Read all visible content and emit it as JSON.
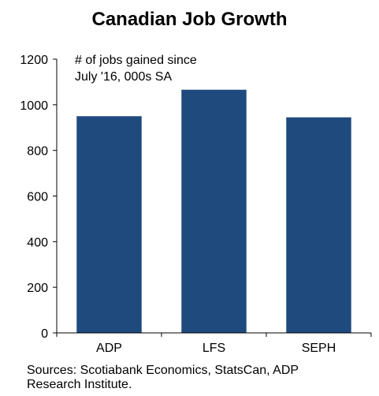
{
  "chart_data": {
    "type": "bar",
    "title": "Canadian Job Growth",
    "annotation_lines": [
      "# of jobs gained since",
      "July '16, 000s SA"
    ],
    "categories": [
      "ADP",
      "LFS",
      "SEPH"
    ],
    "values": [
      950,
      1066,
      945
    ],
    "xlabel": "",
    "ylabel": "",
    "ylim": [
      0,
      1200
    ],
    "yticks": [
      0,
      200,
      400,
      600,
      800,
      1000,
      1200
    ],
    "grid": false,
    "legend": "none",
    "bar_color": "#1f4a7e"
  },
  "footer": {
    "source_line1": "Sources: Scotiabank Economics, StatsCan, ADP",
    "source_line2": "Research Institute."
  }
}
